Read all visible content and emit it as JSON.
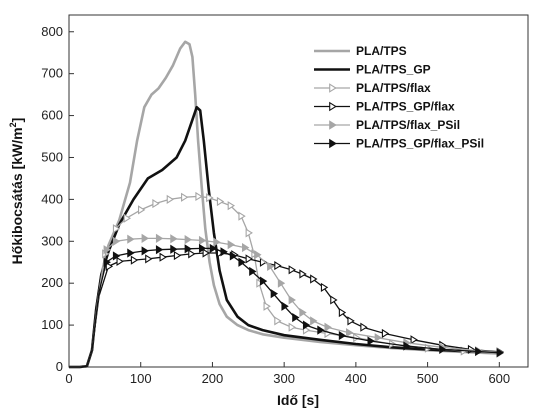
{
  "chart_data": {
    "type": "line",
    "xlabel": "Idő [s]",
    "ylabel_main": "Hőkibocsátás [kW/m",
    "ylabel_sup": "2",
    "ylabel_end": "]",
    "xlim": [
      0,
      640
    ],
    "ylim": [
      0,
      840
    ],
    "xticks": [
      0,
      100,
      200,
      300,
      400,
      500,
      600
    ],
    "yticks": [
      0,
      100,
      200,
      300,
      400,
      500,
      600,
      700,
      800
    ],
    "legend_position": "top-right",
    "series": [
      {
        "name": "PLA/TPS",
        "color": "#a6a6a6",
        "marker": "none",
        "points": [
          [
            0,
            0
          ],
          [
            15,
            0
          ],
          [
            25,
            2
          ],
          [
            32,
            40
          ],
          [
            38,
            140
          ],
          [
            45,
            220
          ],
          [
            55,
            290
          ],
          [
            70,
            350
          ],
          [
            85,
            440
          ],
          [
            95,
            540
          ],
          [
            105,
            620
          ],
          [
            115,
            650
          ],
          [
            125,
            665
          ],
          [
            135,
            690
          ],
          [
            145,
            720
          ],
          [
            155,
            760
          ],
          [
            162,
            776
          ],
          [
            168,
            770
          ],
          [
            172,
            740
          ],
          [
            176,
            650
          ],
          [
            180,
            540
          ],
          [
            185,
            430
          ],
          [
            190,
            330
          ],
          [
            196,
            250
          ],
          [
            202,
            195
          ],
          [
            210,
            150
          ],
          [
            220,
            120
          ],
          [
            235,
            100
          ],
          [
            250,
            88
          ],
          [
            270,
            78
          ],
          [
            300,
            70
          ],
          [
            350,
            60
          ],
          [
            400,
            52
          ],
          [
            450,
            45
          ],
          [
            500,
            40
          ],
          [
            550,
            36
          ],
          [
            600,
            32
          ]
        ]
      },
      {
        "name": "PLA/TPS_GP",
        "color": "#111111",
        "marker": "none",
        "points": [
          [
            0,
            0
          ],
          [
            15,
            0
          ],
          [
            25,
            2
          ],
          [
            32,
            40
          ],
          [
            38,
            140
          ],
          [
            45,
            220
          ],
          [
            55,
            275
          ],
          [
            70,
            340
          ],
          [
            90,
            400
          ],
          [
            110,
            450
          ],
          [
            130,
            470
          ],
          [
            150,
            500
          ],
          [
            162,
            540
          ],
          [
            172,
            590
          ],
          [
            178,
            620
          ],
          [
            183,
            612
          ],
          [
            188,
            540
          ],
          [
            195,
            420
          ],
          [
            202,
            320
          ],
          [
            210,
            230
          ],
          [
            220,
            160
          ],
          [
            235,
            120
          ],
          [
            250,
            100
          ],
          [
            270,
            88
          ],
          [
            300,
            76
          ],
          [
            350,
            65
          ],
          [
            400,
            55
          ],
          [
            450,
            47
          ],
          [
            500,
            42
          ],
          [
            550,
            38
          ],
          [
            600,
            35
          ]
        ]
      },
      {
        "name": "PLA/TPS/flax",
        "color": "#a6a6a6",
        "marker": "triangle-right-open",
        "points": [
          [
            0,
            0
          ],
          [
            15,
            0
          ],
          [
            25,
            2
          ],
          [
            32,
            40
          ],
          [
            40,
            160
          ],
          [
            50,
            270
          ],
          [
            65,
            330
          ],
          [
            80,
            355
          ],
          [
            100,
            375
          ],
          [
            120,
            390
          ],
          [
            140,
            400
          ],
          [
            160,
            405
          ],
          [
            180,
            407
          ],
          [
            195,
            404
          ],
          [
            210,
            395
          ],
          [
            225,
            385
          ],
          [
            240,
            360
          ],
          [
            250,
            320
          ],
          [
            258,
            270
          ],
          [
            265,
            200
          ],
          [
            275,
            145
          ],
          [
            290,
            110
          ],
          [
            310,
            95
          ],
          [
            330,
            88
          ],
          [
            360,
            80
          ],
          [
            400,
            70
          ],
          [
            450,
            55
          ],
          [
            500,
            45
          ],
          [
            550,
            38
          ],
          [
            600,
            33
          ]
        ]
      },
      {
        "name": "PLA/TPS_GP/flax",
        "color": "#111111",
        "marker": "triangle-right-open",
        "points": [
          [
            0,
            0
          ],
          [
            15,
            0
          ],
          [
            25,
            2
          ],
          [
            32,
            40
          ],
          [
            42,
            170
          ],
          [
            55,
            240
          ],
          [
            70,
            252
          ],
          [
            90,
            255
          ],
          [
            110,
            258
          ],
          [
            130,
            262
          ],
          [
            150,
            266
          ],
          [
            170,
            270
          ],
          [
            190,
            272
          ],
          [
            210,
            272
          ],
          [
            230,
            268
          ],
          [
            250,
            258
          ],
          [
            270,
            250
          ],
          [
            290,
            242
          ],
          [
            310,
            232
          ],
          [
            325,
            222
          ],
          [
            340,
            210
          ],
          [
            355,
            190
          ],
          [
            368,
            160
          ],
          [
            380,
            130
          ],
          [
            392,
            110
          ],
          [
            410,
            95
          ],
          [
            440,
            80
          ],
          [
            480,
            65
          ],
          [
            520,
            52
          ],
          [
            560,
            42
          ],
          [
            600,
            36
          ]
        ]
      },
      {
        "name": "PLA/TPS/flax_PSil",
        "color": "#a6a6a6",
        "marker": "triangle-right-filled",
        "points": [
          [
            0,
            0
          ],
          [
            15,
            0
          ],
          [
            25,
            2
          ],
          [
            32,
            40
          ],
          [
            42,
            180
          ],
          [
            52,
            280
          ],
          [
            65,
            300
          ],
          [
            85,
            305
          ],
          [
            105,
            307
          ],
          [
            125,
            307
          ],
          [
            145,
            306
          ],
          [
            165,
            304
          ],
          [
            185,
            302
          ],
          [
            205,
            298
          ],
          [
            225,
            292
          ],
          [
            245,
            285
          ],
          [
            262,
            268
          ],
          [
            280,
            240
          ],
          [
            295,
            200
          ],
          [
            310,
            160
          ],
          [
            325,
            130
          ],
          [
            340,
            110
          ],
          [
            360,
            95
          ],
          [
            390,
            82
          ],
          [
            430,
            70
          ],
          [
            470,
            58
          ],
          [
            520,
            47
          ],
          [
            570,
            39
          ],
          [
            600,
            35
          ]
        ]
      },
      {
        "name": "PLA/TPS_GP/flax_PSil",
        "color": "#111111",
        "marker": "triangle-right-filled",
        "points": [
          [
            0,
            0
          ],
          [
            15,
            0
          ],
          [
            25,
            2
          ],
          [
            32,
            40
          ],
          [
            42,
            180
          ],
          [
            52,
            250
          ],
          [
            65,
            265
          ],
          [
            85,
            272
          ],
          [
            105,
            277
          ],
          [
            125,
            280
          ],
          [
            145,
            281
          ],
          [
            165,
            282
          ],
          [
            185,
            283
          ],
          [
            200,
            283
          ],
          [
            215,
            275
          ],
          [
            228,
            265
          ],
          [
            240,
            250
          ],
          [
            255,
            228
          ],
          [
            270,
            205
          ],
          [
            285,
            175
          ],
          [
            300,
            145
          ],
          [
            315,
            118
          ],
          [
            330,
            100
          ],
          [
            350,
            88
          ],
          [
            380,
            75
          ],
          [
            420,
            62
          ],
          [
            470,
            50
          ],
          [
            520,
            42
          ],
          [
            570,
            37
          ],
          [
            600,
            34
          ]
        ]
      }
    ]
  }
}
